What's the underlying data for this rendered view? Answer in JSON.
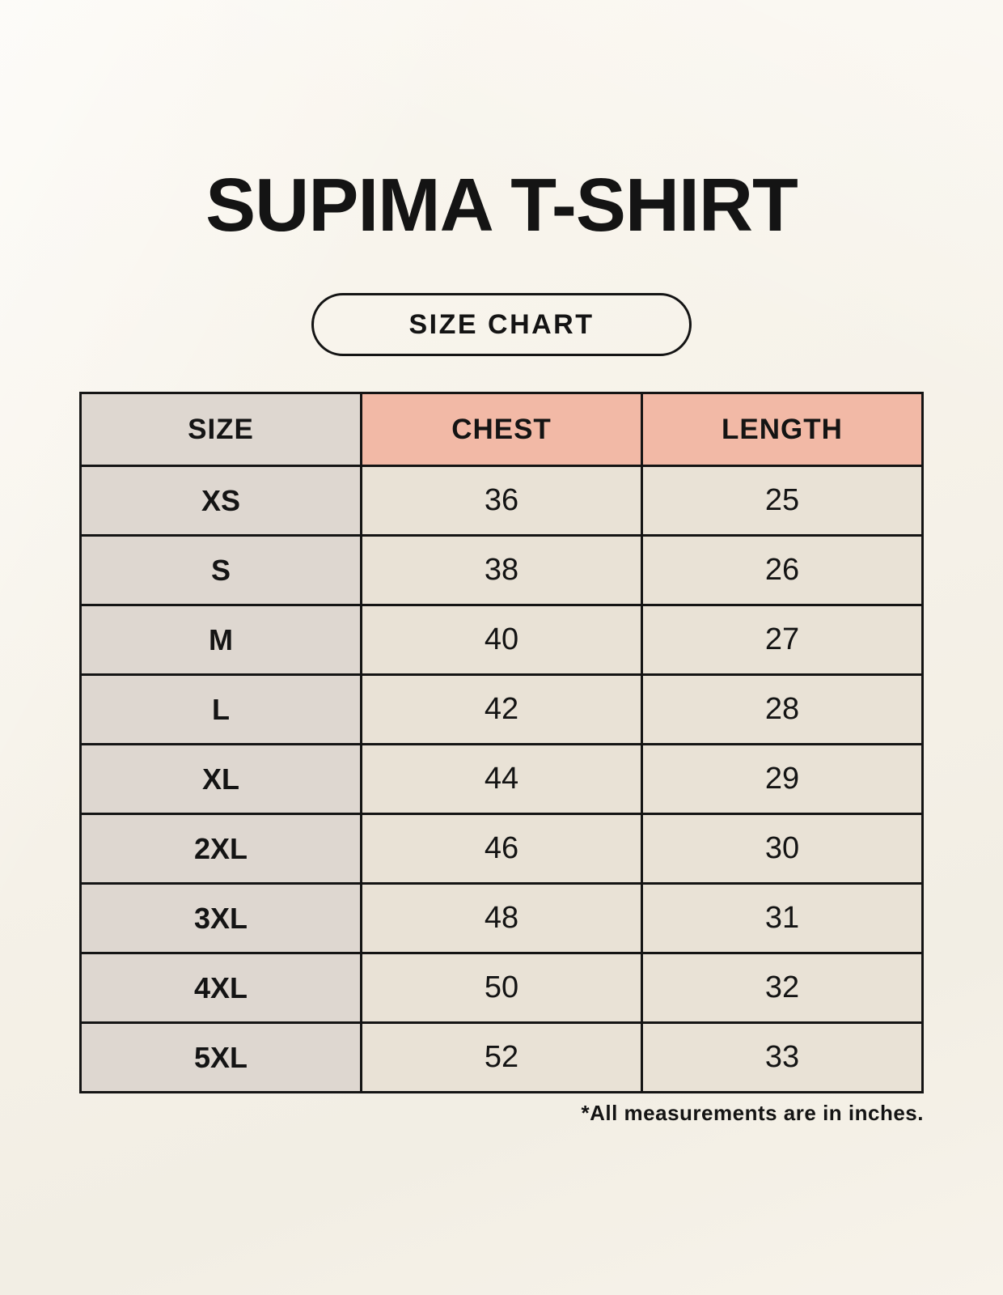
{
  "page": {
    "title": "SUPIMA T-SHIRT",
    "button_label": "SIZE CHART",
    "footnote": "*All measurements are in inches."
  },
  "table": {
    "columns": [
      "SIZE",
      "CHEST",
      "LENGTH"
    ],
    "rows": [
      {
        "size": "XS",
        "chest": "36",
        "length": "25"
      },
      {
        "size": "S",
        "chest": "38",
        "length": "26"
      },
      {
        "size": "M",
        "chest": "40",
        "length": "27"
      },
      {
        "size": "L",
        "chest": "42",
        "length": "28"
      },
      {
        "size": "XL",
        "chest": "44",
        "length": "29"
      },
      {
        "size": "2XL",
        "chest": "46",
        "length": "30"
      },
      {
        "size": "3XL",
        "chest": "48",
        "length": "31"
      },
      {
        "size": "4XL",
        "chest": "50",
        "length": "32"
      },
      {
        "size": "5XL",
        "chest": "52",
        "length": "33"
      }
    ]
  },
  "chart_data": {
    "type": "table",
    "title": "SUPIMA T-SHIRT",
    "columns": [
      "SIZE",
      "CHEST",
      "LENGTH"
    ],
    "categories": [
      "XS",
      "S",
      "M",
      "L",
      "XL",
      "2XL",
      "3XL",
      "4XL",
      "5XL"
    ],
    "series": [
      {
        "name": "CHEST",
        "values": [
          36,
          38,
          40,
          42,
          44,
          46,
          48,
          50,
          52
        ]
      },
      {
        "name": "LENGTH",
        "values": [
          25,
          26,
          27,
          28,
          29,
          30,
          31,
          32,
          33
        ]
      }
    ],
    "units": "inches",
    "note": "*All measurements are in inches."
  },
  "colors": {
    "header_accent": "#f2b9a6",
    "size_column": "#ded7d0",
    "body_cell": "#e9e2d6",
    "border": "#141414",
    "background": "#f7f3ea",
    "text": "#141414"
  }
}
